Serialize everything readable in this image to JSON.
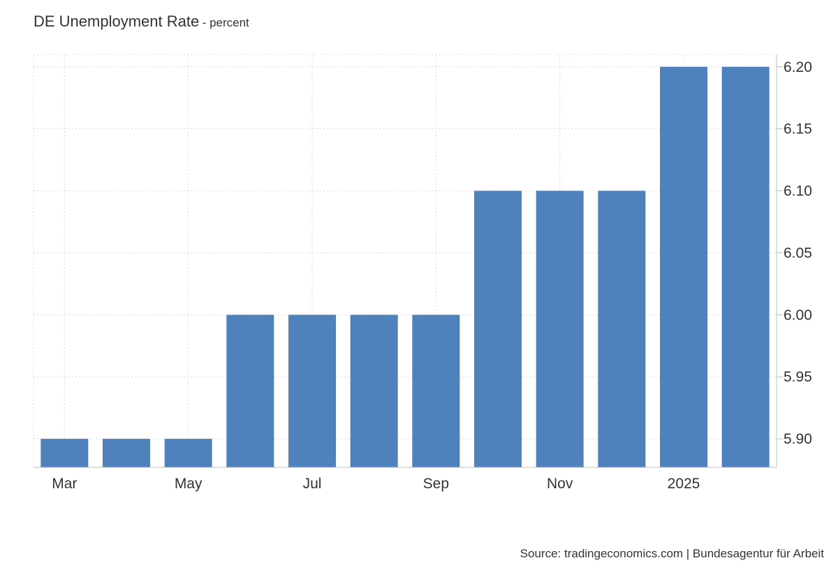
{
  "chart_data": {
    "type": "bar",
    "title": "DE Unemployment Rate",
    "subtitle": "percent",
    "categories": [
      "Mar 2024",
      "Apr 2024",
      "May 2024",
      "Jun 2024",
      "Jul 2024",
      "Aug 2024",
      "Sep 2024",
      "Oct 2024",
      "Nov 2024",
      "Dec 2024",
      "Jan 2025",
      "Feb 2025"
    ],
    "x_tick_labels": [
      "Mar",
      "May",
      "Jul",
      "Sep",
      "Nov",
      "2025"
    ],
    "x_tick_categories": [
      "Mar 2024",
      "May 2024",
      "Jul 2024",
      "Sep 2024",
      "Nov 2024",
      "Jan 2025"
    ],
    "values": [
      5.9,
      5.9,
      5.9,
      6.0,
      6.0,
      6.0,
      6.0,
      6.1,
      6.1,
      6.1,
      6.2,
      6.2
    ],
    "y_ticks": [
      "5.90",
      "5.95",
      "6.00",
      "6.05",
      "6.10",
      "6.15",
      "6.20"
    ],
    "ylim": [
      5.877,
      6.21
    ],
    "y_axis_position": "right",
    "grid": true,
    "bar_color": "#4f81bd",
    "grid_color": "#d9d9d9"
  },
  "source": "Source: tradingeconomics.com | Bundesagentur für Arbeit"
}
